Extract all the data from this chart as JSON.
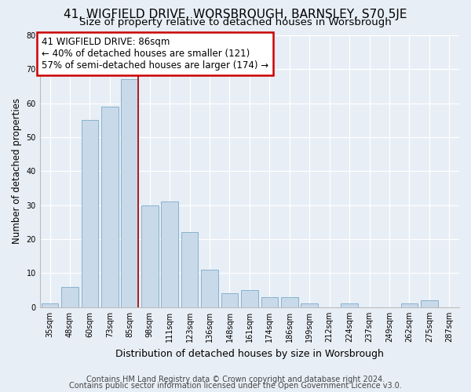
{
  "title_line1": "41, WIGFIELD DRIVE, WORSBROUGH, BARNSLEY, S70 5JE",
  "title_line2": "Size of property relative to detached houses in Worsbrough",
  "xlabel": "Distribution of detached houses by size in Worsbrough",
  "ylabel": "Number of detached properties",
  "categories": [
    "35sqm",
    "48sqm",
    "60sqm",
    "73sqm",
    "85sqm",
    "98sqm",
    "111sqm",
    "123sqm",
    "136sqm",
    "148sqm",
    "161sqm",
    "174sqm",
    "186sqm",
    "199sqm",
    "212sqm",
    "224sqm",
    "237sqm",
    "249sqm",
    "262sqm",
    "275sqm",
    "287sqm"
  ],
  "values": [
    1,
    6,
    55,
    59,
    67,
    30,
    31,
    22,
    11,
    4,
    5,
    3,
    3,
    1,
    0,
    1,
    0,
    0,
    1,
    2,
    0
  ],
  "bar_color": "#c8d9ea",
  "bar_edge_color": "#7aaac8",
  "highlight_bar_index": 4,
  "annotation_text_line1": "41 WIGFIELD DRIVE: 86sqm",
  "annotation_text_line2": "← 40% of detached houses are smaller (121)",
  "annotation_text_line3": "57% of semi-detached houses are larger (174) →",
  "annotation_box_facecolor": "#ffffff",
  "annotation_box_edgecolor": "#cc0000",
  "vline_color": "#aa0000",
  "ylim": [
    0,
    80
  ],
  "yticks": [
    0,
    10,
    20,
    30,
    40,
    50,
    60,
    70,
    80
  ],
  "footnote_line1": "Contains HM Land Registry data © Crown copyright and database right 2024.",
  "footnote_line2": "Contains public sector information licensed under the Open Government Licence v3.0.",
  "background_color": "#e8eef5",
  "plot_background_color": "#e8eef5",
  "title1_fontsize": 11,
  "title2_fontsize": 9.5,
  "ylabel_fontsize": 8.5,
  "xlabel_fontsize": 9,
  "tick_label_fontsize": 7,
  "annotation_fontsize": 8.5,
  "footnote_fontsize": 7
}
